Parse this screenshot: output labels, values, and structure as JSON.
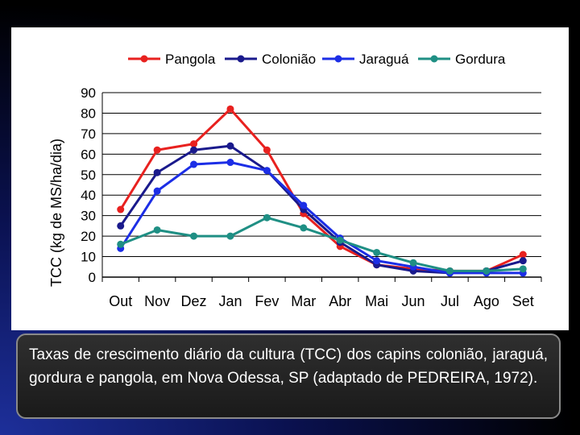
{
  "caption": "Taxas de crescimento diário da cultura (TCC) dos capins colonião, jaraguá, gordura e pangola, em Nova Odessa, SP (adaptado de PEDREIRA, 1972).",
  "chart_data": {
    "type": "line",
    "title": "",
    "xlabel": "",
    "ylabel": "TCC (kg de MS/ha/dia)",
    "categories": [
      "Out",
      "Nov",
      "Dez",
      "Jan",
      "Fev",
      "Mar",
      "Abr",
      "Mai",
      "Jun",
      "Jul",
      "Ago",
      "Set"
    ],
    "ylim": [
      0,
      90
    ],
    "yticks": [
      0,
      10,
      20,
      30,
      40,
      50,
      60,
      70,
      80,
      90
    ],
    "grid": true,
    "legend_position": "top",
    "series": [
      {
        "name": "Pangola",
        "color": "#e8211f",
        "values": [
          33,
          62,
          65,
          82,
          62,
          31,
          15,
          6,
          4,
          3,
          3,
          11
        ]
      },
      {
        "name": "Colonião",
        "color": "#1a1a8c",
        "values": [
          25,
          51,
          62,
          64,
          52,
          33,
          17,
          6,
          3,
          2,
          3,
          8
        ]
      },
      {
        "name": "Jaraguá",
        "color": "#1c2ee6",
        "values": [
          14,
          42,
          55,
          56,
          52,
          35,
          19,
          8,
          5,
          2,
          2,
          2
        ]
      },
      {
        "name": "Gordura",
        "color": "#1f8f84",
        "values": [
          16,
          23,
          20,
          20,
          29,
          24,
          18,
          12,
          7,
          3,
          3,
          4
        ]
      }
    ]
  }
}
